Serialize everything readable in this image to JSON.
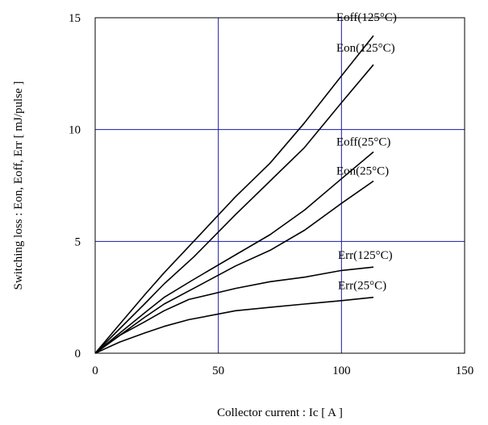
{
  "chart_data": {
    "type": "line",
    "xlabel": "Collector current  :  Ic  [ A ]",
    "ylabel": "Switching loss  :  Eon, Eoff, Err  [ mJ/pulse ]",
    "xlim": [
      0,
      150
    ],
    "ylim": [
      0,
      15
    ],
    "xticks": [
      "0",
      "50",
      "100",
      "150"
    ],
    "yticks": [
      "0",
      "5",
      "10",
      "15"
    ],
    "grid": true,
    "grid_color": "#1a1aa6",
    "line_color": "#000000",
    "series": [
      {
        "name": "Eoff(125°C)",
        "label": "Eoff(125°C)",
        "x": [
          0,
          10,
          20,
          28,
          40,
          57,
          71,
          85,
          100,
          113
        ],
        "y": [
          0,
          1.3,
          2.6,
          3.6,
          5.0,
          7.0,
          8.5,
          10.3,
          12.4,
          14.2
        ]
      },
      {
        "name": "Eon(125°C)",
        "label": "Eon(125°C)",
        "x": [
          0,
          10,
          20,
          28,
          40,
          57,
          71,
          85,
          100,
          113
        ],
        "y": [
          0,
          1.1,
          2.2,
          3.1,
          4.3,
          6.2,
          7.7,
          9.2,
          11.2,
          12.9
        ]
      },
      {
        "name": "Eoff(25°C)",
        "label": "Eoff(25°C)",
        "x": [
          0,
          10,
          20,
          28,
          40,
          57,
          71,
          85,
          100,
          113
        ],
        "y": [
          0,
          0.9,
          1.8,
          2.5,
          3.3,
          4.4,
          5.3,
          6.4,
          7.8,
          9.0
        ]
      },
      {
        "name": "Eon(25°C)",
        "label": "Eon(25°C)",
        "x": [
          0,
          10,
          20,
          28,
          40,
          57,
          71,
          85,
          100,
          113
        ],
        "y": [
          0,
          0.8,
          1.6,
          2.2,
          2.9,
          3.9,
          4.6,
          5.5,
          6.7,
          7.7
        ]
      },
      {
        "name": "Err(125°C)",
        "label": "Err(125°C)",
        "x": [
          0,
          10,
          20,
          28,
          38,
          57,
          71,
          85,
          100,
          113
        ],
        "y": [
          0,
          0.8,
          1.4,
          1.9,
          2.4,
          2.9,
          3.2,
          3.4,
          3.7,
          3.85
        ]
      },
      {
        "name": "Err(25°C)",
        "label": "Err(25°C)",
        "x": [
          0,
          10,
          20,
          28,
          38,
          57,
          71,
          85,
          100,
          113
        ],
        "y": [
          0,
          0.5,
          0.9,
          1.2,
          1.5,
          1.9,
          2.05,
          2.2,
          2.35,
          2.5
        ]
      }
    ]
  }
}
